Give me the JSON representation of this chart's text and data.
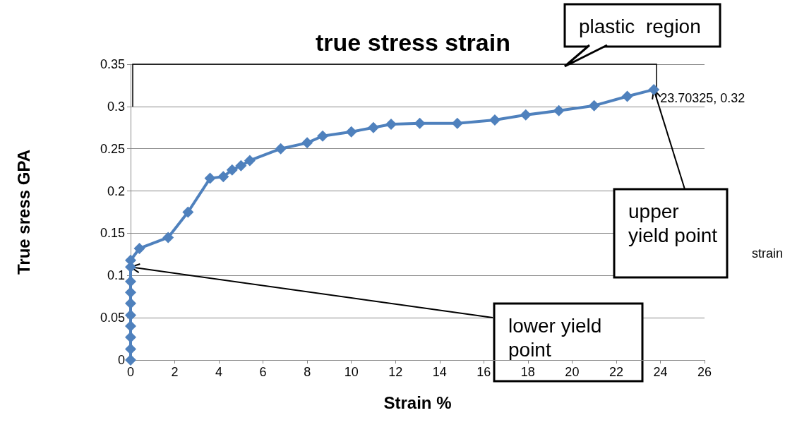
{
  "chart_data": {
    "type": "line",
    "title": "true stress strain",
    "xlabel": "Strain %",
    "ylabel": "True sress GPA",
    "x": [
      0,
      0,
      0,
      0,
      0,
      0,
      0,
      0,
      0,
      0,
      0.4,
      1.7,
      2.6,
      3.6,
      4.2,
      4.6,
      5.0,
      5.4,
      6.8,
      8.0,
      8.7,
      10.0,
      11.0,
      11.8,
      13.1,
      14.8,
      16.5,
      17.9,
      19.4,
      21.0,
      22.5,
      23.70325
    ],
    "series": [
      {
        "color": "#4f81bd",
        "values": [
          0,
          0.013,
          0.027,
          0.04,
          0.053,
          0.067,
          0.08,
          0.093,
          0.11,
          0.118,
          0.132,
          0.145,
          0.175,
          0.215,
          0.217,
          0.225,
          0.23,
          0.236,
          0.25,
          0.257,
          0.265,
          0.27,
          0.275,
          0.279,
          0.28,
          0.28,
          0.284,
          0.29,
          0.295,
          0.301,
          0.312,
          0.32
        ],
        "value_labels": [
          null,
          null,
          null,
          null,
          null,
          null,
          null,
          null,
          null,
          null,
          null,
          null,
          null,
          null,
          null,
          null,
          null,
          null,
          null,
          null,
          null,
          null,
          null,
          null,
          null,
          null,
          null,
          null,
          null,
          null,
          null,
          "23.70325, 0.32"
        ]
      }
    ],
    "xlim": [
      0,
      26
    ],
    "xticks": [
      0,
      2,
      4,
      6,
      8,
      10,
      12,
      14,
      16,
      18,
      20,
      22,
      24,
      26
    ],
    "ylim": [
      0,
      0.35
    ],
    "yticks": [
      0,
      0.05,
      0.1,
      0.15,
      0.2,
      0.25,
      0.3,
      0.35
    ],
    "grid": "y",
    "marker": "diamond",
    "line_style": "solid",
    "annotations": [
      "plastic  region",
      {
        "text": "upper\nyield point",
        "x": 23.70325,
        "y": 0.32
      },
      {
        "text": "lower yield\npoint",
        "x": 0,
        "y": 0.11
      },
      "strain"
    ]
  }
}
